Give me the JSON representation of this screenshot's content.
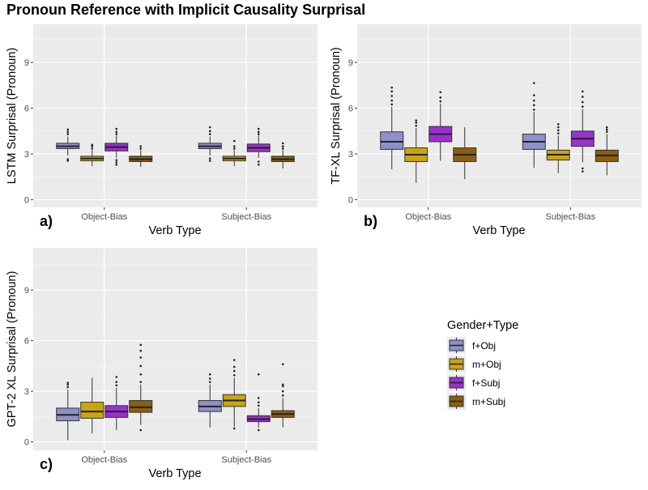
{
  "title": "Pronoun Reference with Implicit Causality Surprisal",
  "legend": {
    "title": "Gender+Type",
    "position": "right",
    "items": [
      {
        "label": "f+Obj",
        "color": "#8d90c9"
      },
      {
        "label": "m+Obj",
        "color": "#c9a50f"
      },
      {
        "label": "f+Subj",
        "color": "#9a30cf"
      },
      {
        "label": "m+Subj",
        "color": "#8a5f10"
      }
    ]
  },
  "chart_data": [
    {
      "type": "box",
      "panel_label": "a)",
      "xlabel": "Verb Type",
      "ylabel": "LSTM Surprisal (Pronoun)",
      "categories": [
        "Object-Bias",
        "Subject-Bias"
      ],
      "yticks": [
        0,
        3,
        6,
        9
      ],
      "ylim": [
        -0.5,
        11.5
      ],
      "grid": true,
      "series": [
        {
          "name": "f+Obj",
          "boxes": [
            {
              "whislo": 2.9,
              "q1": 3.35,
              "med": 3.5,
              "q3": 3.7,
              "whishi": 4.15,
              "outliers": [
                2.55,
                2.65,
                4.3,
                4.45,
                4.6
              ]
            },
            {
              "whislo": 2.9,
              "q1": 3.35,
              "med": 3.5,
              "q3": 3.7,
              "whishi": 4.15,
              "outliers": [
                2.55,
                2.7,
                4.3,
                4.5,
                4.75
              ]
            }
          ]
        },
        {
          "name": "m+Obj",
          "boxes": [
            {
              "whislo": 2.2,
              "q1": 2.55,
              "med": 2.7,
              "q3": 2.85,
              "whishi": 3.25,
              "outliers": [
                3.35,
                3.5,
                3.6
              ]
            },
            {
              "whislo": 2.2,
              "q1": 2.55,
              "med": 2.7,
              "q3": 2.85,
              "whishi": 3.25,
              "outliers": [
                3.35,
                3.5,
                3.85
              ]
            }
          ]
        },
        {
          "name": "f+Subj",
          "boxes": [
            {
              "whislo": 2.75,
              "q1": 3.2,
              "med": 3.45,
              "q3": 3.7,
              "whishi": 4.2,
              "outliers": [
                2.3,
                2.45,
                2.6,
                4.3,
                4.45,
                4.65
              ]
            },
            {
              "whislo": 2.75,
              "q1": 3.15,
              "med": 3.4,
              "q3": 3.65,
              "whishi": 4.2,
              "outliers": [
                2.3,
                2.5,
                4.3,
                4.45,
                4.65
              ]
            }
          ]
        },
        {
          "name": "m+Subj",
          "boxes": [
            {
              "whislo": 2.15,
              "q1": 2.5,
              "med": 2.65,
              "q3": 2.85,
              "whishi": 3.25,
              "outliers": [
                3.35,
                3.5
              ]
            },
            {
              "whislo": 2.05,
              "q1": 2.5,
              "med": 2.65,
              "q3": 2.85,
              "whishi": 3.25,
              "outliers": [
                3.35,
                3.5,
                3.7
              ]
            }
          ]
        }
      ]
    },
    {
      "type": "box",
      "panel_label": "b)",
      "xlabel": "Verb Type",
      "ylabel": "TF-XL Surprisal (Pronoun)",
      "categories": [
        "Object-Bias",
        "Subject-Bias"
      ],
      "yticks": [
        0,
        3,
        6,
        9
      ],
      "ylim": [
        -0.5,
        11.5
      ],
      "grid": true,
      "series": [
        {
          "name": "f+Obj",
          "boxes": [
            {
              "whislo": 2.0,
              "q1": 3.3,
              "med": 3.8,
              "q3": 4.45,
              "whishi": 6.1,
              "outliers": [
                6.25,
                6.5,
                6.8,
                7.1,
                7.35
              ]
            },
            {
              "whislo": 2.1,
              "q1": 3.3,
              "med": 3.8,
              "q3": 4.3,
              "whishi": 5.75,
              "outliers": [
                5.9,
                6.2,
                6.5,
                6.85,
                7.65
              ]
            }
          ]
        },
        {
          "name": "m+Obj",
          "boxes": [
            {
              "whislo": 1.1,
              "q1": 2.5,
              "med": 2.95,
              "q3": 3.4,
              "whishi": 4.7,
              "outliers": [
                4.85,
                5.05,
                5.2
              ]
            },
            {
              "whislo": 1.75,
              "q1": 2.6,
              "med": 2.95,
              "q3": 3.25,
              "whishi": 4.2,
              "outliers": [
                4.35,
                4.55,
                4.75,
                4.95
              ]
            }
          ]
        },
        {
          "name": "f+Subj",
          "boxes": [
            {
              "whislo": 2.55,
              "q1": 3.8,
              "med": 4.3,
              "q3": 4.8,
              "whishi": 6.3,
              "outliers": [
                6.45,
                6.7,
                7.05
              ]
            },
            {
              "whislo": 2.45,
              "q1": 3.5,
              "med": 4.0,
              "q3": 4.5,
              "whishi": 5.95,
              "outliers": [
                1.85,
                2.05,
                6.1,
                6.4,
                6.75,
                7.1
              ]
            }
          ]
        },
        {
          "name": "m+Subj",
          "boxes": [
            {
              "whislo": 1.35,
              "q1": 2.5,
              "med": 2.95,
              "q3": 3.4,
              "whishi": 4.75,
              "outliers": []
            },
            {
              "whislo": 1.6,
              "q1": 2.5,
              "med": 2.9,
              "q3": 3.25,
              "whishi": 4.3,
              "outliers": [
                4.45,
                4.6,
                4.75
              ]
            }
          ]
        }
      ]
    },
    {
      "type": "box",
      "panel_label": "c)",
      "xlabel": "Verb Type",
      "ylabel": "GPT-2 XL Surprisal (Pronoun)",
      "categories": [
        "Object-Bias",
        "Subject-Bias"
      ],
      "yticks": [
        0,
        3,
        6,
        9
      ],
      "ylim": [
        -0.5,
        11.5
      ],
      "grid": true,
      "series": [
        {
          "name": "f+Obj",
          "boxes": [
            {
              "whislo": 0.1,
              "q1": 1.25,
              "med": 1.6,
              "q3": 2.0,
              "whishi": 3.1,
              "outliers": [
                3.25,
                3.4,
                3.5
              ]
            },
            {
              "whislo": 0.85,
              "q1": 1.8,
              "med": 2.1,
              "q3": 2.45,
              "whishi": 3.4,
              "outliers": [
                3.55,
                3.75,
                4.0
              ]
            }
          ]
        },
        {
          "name": "m+Obj",
          "boxes": [
            {
              "whislo": 0.5,
              "q1": 1.4,
              "med": 1.8,
              "q3": 2.35,
              "whishi": 3.8,
              "outliers": []
            },
            {
              "whislo": 0.9,
              "q1": 2.1,
              "med": 2.45,
              "q3": 2.8,
              "whishi": 3.8,
              "outliers": [
                0.8,
                3.95,
                4.2,
                4.45,
                4.85
              ]
            }
          ]
        },
        {
          "name": "f+Subj",
          "boxes": [
            {
              "whislo": 0.7,
              "q1": 1.45,
              "med": 1.8,
              "q3": 2.15,
              "whishi": 3.2,
              "outliers": [
                3.35,
                3.55,
                3.85
              ]
            },
            {
              "whislo": 0.85,
              "q1": 1.2,
              "med": 1.35,
              "q3": 1.55,
              "whishi": 2.0,
              "outliers": [
                0.7,
                2.15,
                2.35,
                2.6,
                4.0
              ]
            }
          ]
        },
        {
          "name": "m+Subj",
          "boxes": [
            {
              "whislo": 1.0,
              "q1": 1.75,
              "med": 2.05,
              "q3": 2.45,
              "whishi": 3.4,
              "outliers": [
                0.7,
                3.55,
                4.0,
                4.5,
                5.0,
                5.4,
                5.75
              ]
            },
            {
              "whislo": 0.85,
              "q1": 1.45,
              "med": 1.65,
              "q3": 1.85,
              "whishi": 2.6,
              "outliers": [
                2.75,
                3.0,
                3.3,
                3.4,
                4.6
              ]
            }
          ]
        }
      ]
    }
  ]
}
